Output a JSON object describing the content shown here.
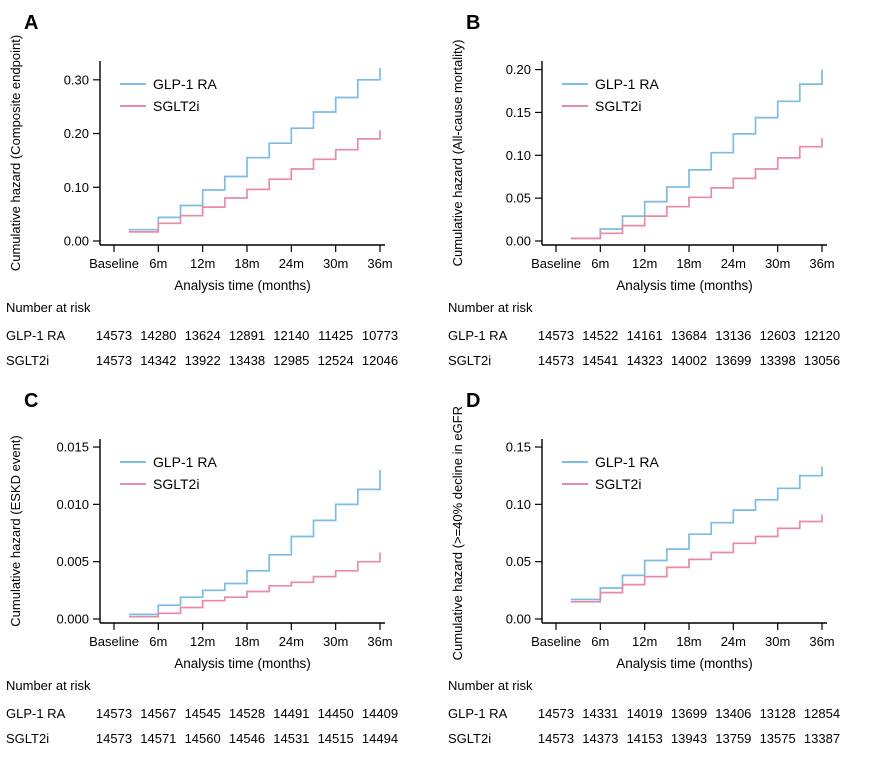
{
  "figure": {
    "background_color": "#ffffff",
    "axis_color": "#000000",
    "series_colors": {
      "glp1ra": "#7bbde4",
      "sglt2i": "#e88ba3"
    }
  },
  "chart_data": [
    {
      "panel_label": "A",
      "type": "line",
      "step": true,
      "ylabel": "Cumulative hazard (Composite endpoint)",
      "xlabel": "Analysis time (months)",
      "x_tick_months": [
        0,
        6,
        12,
        18,
        24,
        30,
        36
      ],
      "x_tick_labels": [
        "Baseline",
        "6m",
        "12m",
        "18m",
        "24m",
        "30m",
        "36m"
      ],
      "y_ticks": [
        0,
        0.1,
        0.2,
        0.3
      ],
      "y_tick_labels": [
        "0.00",
        "0.10",
        "0.20",
        "0.30"
      ],
      "ylim": [
        0,
        0.335
      ],
      "legend_position": "top-left-inside",
      "grid": false,
      "step_months": [
        2,
        6,
        9,
        12,
        15,
        18,
        21,
        24,
        27,
        30,
        33,
        36
      ],
      "series": [
        {
          "name": "GLP-1 RA",
          "color": "#7bbde4",
          "values": [
            0.021,
            0.044,
            0.066,
            0.095,
            0.12,
            0.155,
            0.182,
            0.21,
            0.24,
            0.267,
            0.3,
            0.322
          ]
        },
        {
          "name": "SGLT2i",
          "color": "#e88ba3",
          "values": [
            0.017,
            0.033,
            0.047,
            0.063,
            0.08,
            0.096,
            0.115,
            0.134,
            0.152,
            0.17,
            0.19,
            0.206
          ]
        }
      ],
      "number_at_risk": {
        "title": "Number at risk",
        "time_points": [
          "Baseline",
          "6m",
          "12m",
          "18m",
          "24m",
          "30m",
          "36m"
        ],
        "rows": [
          {
            "label": "GLP-1 RA",
            "counts": [
              "14573",
              "14280",
              "13624",
              "12891",
              "12140",
              "11425",
              "10773"
            ]
          },
          {
            "label": "SGLT2i",
            "counts": [
              "14573",
              "14342",
              "13922",
              "13438",
              "12985",
              "12524",
              "12046"
            ]
          }
        ]
      }
    },
    {
      "panel_label": "B",
      "type": "line",
      "step": true,
      "ylabel": "Cumulative hazard (All-cause mortality)",
      "xlabel": "Analysis time (months)",
      "x_tick_months": [
        0,
        6,
        12,
        18,
        24,
        30,
        36
      ],
      "x_tick_labels": [
        "Baseline",
        "6m",
        "12m",
        "18m",
        "24m",
        "30m",
        "36m"
      ],
      "y_ticks": [
        0,
        0.05,
        0.1,
        0.15,
        0.2
      ],
      "y_tick_labels": [
        "0.00",
        "0.05",
        "0.10",
        "0.15",
        "0.20"
      ],
      "ylim": [
        0,
        0.21
      ],
      "legend_position": "top-left-inside",
      "grid": false,
      "step_months": [
        2,
        6,
        9,
        12,
        15,
        18,
        21,
        24,
        27,
        30,
        33,
        36
      ],
      "series": [
        {
          "name": "GLP-1 RA",
          "color": "#7bbde4",
          "values": [
            0.003,
            0.014,
            0.029,
            0.046,
            0.063,
            0.083,
            0.103,
            0.125,
            0.144,
            0.163,
            0.183,
            0.2
          ]
        },
        {
          "name": "SGLT2i",
          "color": "#e88ba3",
          "values": [
            0.003,
            0.009,
            0.018,
            0.029,
            0.04,
            0.051,
            0.062,
            0.073,
            0.084,
            0.097,
            0.11,
            0.12
          ]
        }
      ],
      "number_at_risk": {
        "title": "Number at risk",
        "time_points": [
          "Baseline",
          "6m",
          "12m",
          "18m",
          "24m",
          "30m",
          "36m"
        ],
        "rows": [
          {
            "label": "GLP-1 RA",
            "counts": [
              "14573",
              "14522",
              "14161",
              "13684",
              "13136",
              "12603",
              "12120"
            ]
          },
          {
            "label": "SGLT2i",
            "counts": [
              "14573",
              "14541",
              "14323",
              "14002",
              "13699",
              "13398",
              "13056"
            ]
          }
        ]
      }
    },
    {
      "panel_label": "C",
      "type": "line",
      "step": true,
      "ylabel": "Cumulative hazard (ESKD event)",
      "xlabel": "Analysis time (months)",
      "x_tick_months": [
        0,
        6,
        12,
        18,
        24,
        30,
        36
      ],
      "x_tick_labels": [
        "Baseline",
        "6m",
        "12m",
        "18m",
        "24m",
        "30m",
        "36m"
      ],
      "y_ticks": [
        0,
        0.005,
        0.01,
        0.015
      ],
      "y_tick_labels": [
        "0.000",
        "0.005",
        "0.010",
        "0.015"
      ],
      "ylim": [
        0,
        0.0157
      ],
      "legend_position": "top-left-inside",
      "grid": false,
      "step_months": [
        2,
        6,
        9,
        12,
        15,
        18,
        21,
        24,
        27,
        30,
        33,
        36
      ],
      "series": [
        {
          "name": "GLP-1 RA",
          "color": "#7bbde4",
          "values": [
            0.0004,
            0.0012,
            0.0019,
            0.0025,
            0.0031,
            0.0042,
            0.0056,
            0.0072,
            0.0086,
            0.01,
            0.0113,
            0.013
          ]
        },
        {
          "name": "SGLT2i",
          "color": "#e88ba3",
          "values": [
            0.0002,
            0.0005,
            0.001,
            0.0016,
            0.0019,
            0.0024,
            0.0029,
            0.0032,
            0.0037,
            0.0042,
            0.005,
            0.0058
          ]
        }
      ],
      "number_at_risk": {
        "title": "Number at risk",
        "time_points": [
          "Baseline",
          "6m",
          "12m",
          "18m",
          "24m",
          "30m",
          "36m"
        ],
        "rows": [
          {
            "label": "GLP-1 RA",
            "counts": [
              "14573",
              "14567",
              "14545",
              "14528",
              "14491",
              "14450",
              "14409"
            ]
          },
          {
            "label": "SGLT2i",
            "counts": [
              "14573",
              "14571",
              "14560",
              "14546",
              "14531",
              "14515",
              "14494"
            ]
          }
        ]
      }
    },
    {
      "panel_label": "D",
      "type": "line",
      "step": true,
      "ylabel": "Cumulative hazard (>=40% decline in eGFR)",
      "xlabel": "Analysis time (months)",
      "x_tick_months": [
        0,
        6,
        12,
        18,
        24,
        30,
        36
      ],
      "x_tick_labels": [
        "Baseline",
        "6m",
        "12m",
        "18m",
        "24m",
        "30m",
        "36m"
      ],
      "y_ticks": [
        0,
        0.05,
        0.1,
        0.15
      ],
      "y_tick_labels": [
        "0.00",
        "0.05",
        "0.10",
        "0.15"
      ],
      "ylim": [
        0,
        0.157
      ],
      "legend_position": "top-left-inside",
      "grid": false,
      "step_months": [
        2,
        6,
        9,
        12,
        15,
        18,
        21,
        24,
        27,
        30,
        33,
        36
      ],
      "series": [
        {
          "name": "GLP-1 RA",
          "color": "#7bbde4",
          "values": [
            0.017,
            0.027,
            0.038,
            0.051,
            0.061,
            0.074,
            0.084,
            0.095,
            0.104,
            0.114,
            0.125,
            0.133
          ]
        },
        {
          "name": "SGLT2i",
          "color": "#e88ba3",
          "values": [
            0.015,
            0.023,
            0.03,
            0.037,
            0.045,
            0.052,
            0.058,
            0.066,
            0.072,
            0.079,
            0.085,
            0.091
          ]
        }
      ],
      "number_at_risk": {
        "title": "Number at risk",
        "time_points": [
          "Baseline",
          "6m",
          "12m",
          "18m",
          "24m",
          "30m",
          "36m"
        ],
        "rows": [
          {
            "label": "GLP-1 RA",
            "counts": [
              "14573",
              "14331",
              "14019",
              "13699",
              "13406",
              "13128",
              "12854"
            ]
          },
          {
            "label": "SGLT2i",
            "counts": [
              "14573",
              "14373",
              "14153",
              "13943",
              "13759",
              "13575",
              "13387"
            ]
          }
        ]
      }
    }
  ]
}
